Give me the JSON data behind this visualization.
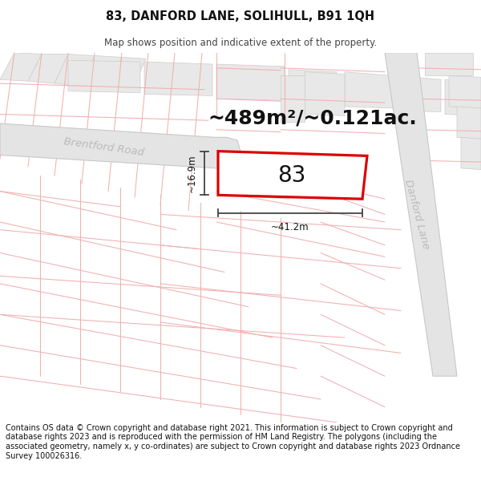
{
  "title": "83, DANFORD LANE, SOLIHULL, B91 1QH",
  "subtitle": "Map shows position and indicative extent of the property.",
  "area_text": "~489m²/~0.121ac.",
  "label_83": "83",
  "dim_width": "~41.2m",
  "dim_height": "~16.9m",
  "footer": "Contains OS data © Crown copyright and database right 2021. This information is subject to Crown copyright and database rights 2023 and is reproduced with the permission of HM Land Registry. The polygons (including the associated geometry, namely x, y co-ordinates) are subject to Crown copyright and database rights 2023 Ordnance Survey 100026316.",
  "bg_color": "#ffffff",
  "map_bg": "#ffffff",
  "gray_block_color": "#e8e8e8",
  "gray_block_edge": "#cccccc",
  "pink_color": "#f0b0b0",
  "red_color": "#dd0000",
  "road_fill": "#e0e0e0",
  "road_edge": "#bbbbbb",
  "road_label_color": "#bbbbbb",
  "dim_line_color": "#444444",
  "title_fontsize": 10.5,
  "subtitle_fontsize": 8.5,
  "area_fontsize": 18,
  "label_fontsize": 20,
  "footer_fontsize": 7.0,
  "road_label_fontsize": 9.5
}
